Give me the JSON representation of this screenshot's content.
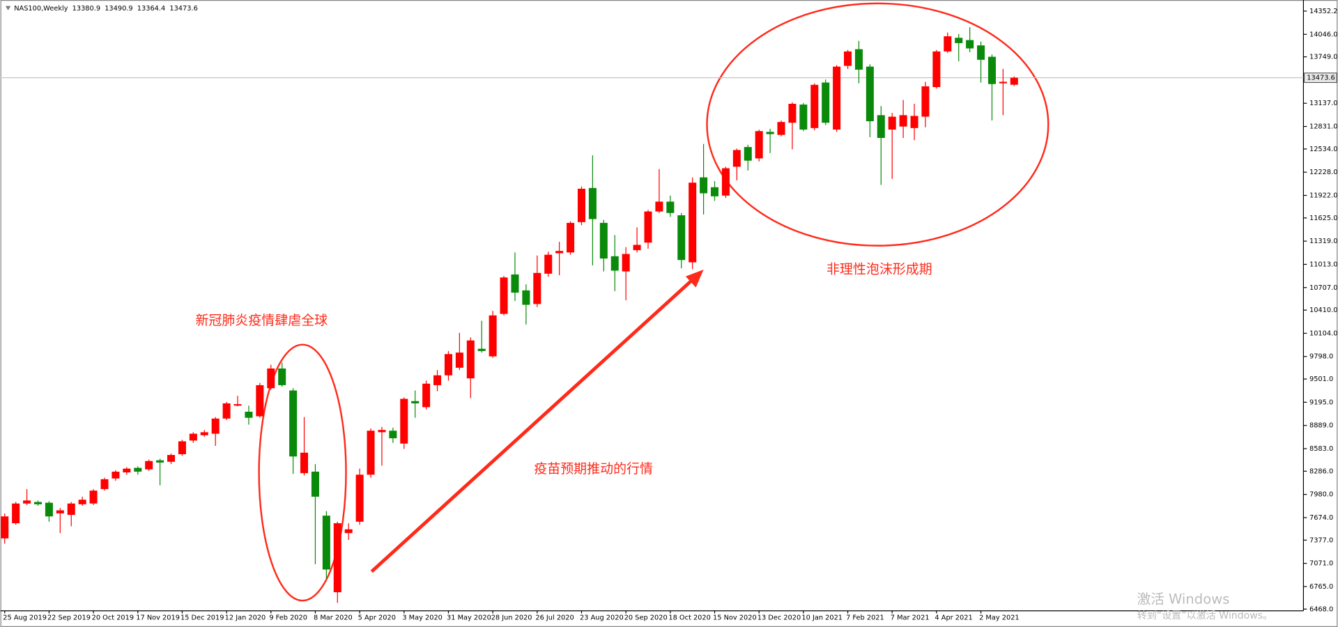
{
  "chart_data": {
    "type": "candlestick",
    "title": "NAS100,Weekly",
    "categories": [
      "25 Aug 2019",
      null,
      null,
      null,
      "22 Sep 2019",
      null,
      null,
      null,
      "20 Oct 2019",
      null,
      null,
      null,
      "17 Nov 2019",
      null,
      null,
      null,
      "15 Dec 2019",
      null,
      null,
      null,
      "12 Jan 2020",
      null,
      null,
      null,
      "9 Feb 2020",
      null,
      null,
      null,
      "8 Mar 2020",
      null,
      null,
      null,
      "5 Apr 2020",
      null,
      null,
      null,
      "3 May 2020",
      null,
      null,
      null,
      "31 May 2020",
      null,
      null,
      null,
      "28 Jun 2020",
      null,
      null,
      null,
      "26 Jul 2020",
      null,
      null,
      null,
      "23 Aug 2020",
      null,
      null,
      null,
      "20 Sep 2020",
      null,
      null,
      null,
      "18 Oct 2020",
      null,
      null,
      null,
      "15 Nov 2020",
      null,
      null,
      null,
      "13 Dec 2020",
      null,
      null,
      null,
      "10 Jan 2021",
      null,
      null,
      null,
      "7 Feb 2021",
      null,
      null,
      null,
      "7 Mar 2021",
      null,
      null,
      null,
      "4 Apr 2021",
      null,
      null,
      null,
      "2 May 2021",
      null,
      null,
      null
    ],
    "open": [
      7400,
      7600,
      7860,
      7880,
      7870,
      7730,
      7710,
      7850,
      7860,
      8050,
      8190,
      8270,
      8330,
      8310,
      8430,
      8410,
      8510,
      8690,
      8760,
      8780,
      8980,
      9150,
      9070,
      9010,
      9380,
      9640,
      9350,
      8260,
      8280,
      7700,
      6690,
      7470,
      7620,
      8240,
      8800,
      8820,
      8650,
      9210,
      9130,
      9420,
      9550,
      9650,
      9510,
      9900,
      9800,
      10360,
      10880,
      10670,
      10490,
      10890,
      11160,
      11170,
      11570,
      12020,
      11560,
      11120,
      10920,
      11200,
      11300,
      11710,
      11840,
      11660,
      11040,
      12160,
      12030,
      11920,
      12300,
      12560,
      12410,
      12760,
      12720,
      12880,
      13120,
      12810,
      13410,
      12790,
      13630,
      13850,
      13620,
      12980,
      12790,
      12830,
      12810,
      12960,
      13350,
      13820,
      14000,
      13970,
      13900,
      13750,
      13400,
      13380.9
    ],
    "high": [
      7730,
      7880,
      8050,
      7900,
      7890,
      7800,
      7880,
      7950,
      8050,
      8200,
      8300,
      8340,
      8350,
      8440,
      8450,
      8520,
      8700,
      8800,
      8830,
      9000,
      9200,
      9280,
      9150,
      9450,
      9690,
      9720,
      9380,
      9000,
      8380,
      7760,
      7620,
      7600,
      8320,
      8850,
      8870,
      8860,
      9260,
      9350,
      9480,
      9620,
      9870,
      10110,
      10050,
      10270,
      10400,
      10860,
      11170,
      10750,
      11130,
      11180,
      11310,
      11580,
      12040,
      12450,
      11600,
      11400,
      11240,
      11500,
      11730,
      12270,
      11920,
      11690,
      12160,
      12600,
      12110,
      12300,
      12540,
      12590,
      12790,
      12800,
      12910,
      13150,
      13140,
      13400,
      13450,
      13640,
      13840,
      13960,
      13650,
      13100,
      13010,
      13180,
      13130,
      13420,
      13840,
      14070,
      14050,
      14140,
      13950,
      13780,
      13590,
      13490.9
    ],
    "low": [
      7330,
      7580,
      7840,
      7830,
      7620,
      7470,
      7560,
      7830,
      7840,
      8030,
      8160,
      8240,
      8240,
      8290,
      8100,
      8380,
      8490,
      8660,
      8740,
      8620,
      8960,
      9140,
      8900,
      8990,
      9360,
      9400,
      8250,
      8230,
      7060,
      6870,
      6550,
      7380,
      7580,
      8200,
      8360,
      8660,
      8580,
      8990,
      9100,
      9340,
      9480,
      9620,
      9250,
      9850,
      9780,
      10340,
      10530,
      10220,
      10450,
      10850,
      10870,
      11140,
      11530,
      11000,
      10920,
      10660,
      10540,
      11170,
      11220,
      11690,
      11640,
      10960,
      10950,
      11670,
      11850,
      11890,
      12120,
      12250,
      12370,
      12480,
      12700,
      12530,
      12770,
      12780,
      12850,
      12760,
      13590,
      13400,
      12690,
      12060,
      12140,
      12680,
      12650,
      12820,
      13330,
      13800,
      13690,
      13810,
      13410,
      12910,
      12980,
      13364.4
    ],
    "close": [
      7690,
      7860,
      7900,
      7850,
      7690,
      7770,
      7860,
      7910,
      8030,
      8180,
      8280,
      8320,
      8280,
      8420,
      8400,
      8500,
      8680,
      8780,
      8800,
      8980,
      9180,
      9170,
      8990,
      9420,
      9640,
      9420,
      8480,
      8530,
      7950,
      6990,
      7600,
      7520,
      8240,
      8820,
      8830,
      8720,
      9240,
      9180,
      9440,
      9550,
      9830,
      9850,
      10010,
      9870,
      10340,
      10840,
      10640,
      10480,
      10900,
      11140,
      11190,
      11560,
      12010,
      11610,
      11090,
      10930,
      11150,
      11270,
      11710,
      11840,
      11690,
      11070,
      12090,
      11950,
      11910,
      12280,
      12520,
      12380,
      12770,
      12730,
      12890,
      13130,
      12790,
      13380,
      12880,
      13620,
      13820,
      13580,
      12900,
      12680,
      12960,
      12980,
      12970,
      13360,
      13820,
      14020,
      13930,
      13860,
      13710,
      13390,
      13420,
      13473.6
    ],
    "up_color": "#ff0000",
    "down_color": "#0a8a0a",
    "ylim": [
      6468.0,
      14352.2
    ],
    "yticks": [
      14352.2,
      {
        "value": 14046,
        "label": "14046.0"
      },
      {
        "value": 13749,
        "label": "13749.0"
      },
      {
        "value": 13137,
        "label": "13137.0"
      },
      {
        "value": 12831,
        "label": "12831.0"
      },
      {
        "value": 12534,
        "label": "12534.0"
      },
      {
        "value": 12228,
        "label": "12228.0"
      },
      {
        "value": 11922,
        "label": "11922.0"
      },
      {
        "value": 11625,
        "label": "11625.0"
      },
      {
        "value": 11319,
        "label": "11319.0"
      },
      {
        "value": 11013,
        "label": "11013.0"
      },
      {
        "value": 10707,
        "label": "10707.0"
      },
      {
        "value": 10410,
        "label": "10410.0"
      },
      {
        "value": 10104,
        "label": "10104.0"
      },
      {
        "value": 9798,
        "label": "9798.0"
      },
      {
        "value": 9501,
        "label": "9501.0"
      },
      {
        "value": 9195,
        "label": "9195.0"
      },
      {
        "value": 8889,
        "label": "8889.0"
      },
      {
        "value": 8583,
        "label": "8583.0"
      },
      {
        "value": 8286,
        "label": "8286.0"
      },
      {
        "value": 7980,
        "label": "7980.0"
      },
      {
        "value": 7674,
        "label": "7674.0"
      },
      {
        "value": 7377,
        "label": "7377.0"
      },
      {
        "value": 7071,
        "label": "7071.0"
      },
      {
        "value": 6765,
        "label": "6765.0"
      },
      {
        "value": 6468,
        "label": "6468.0"
      }
    ],
    "grid": false,
    "annotations": [
      "新冠肺炎疫情肆虐全球",
      "疫苗预期推动的行情",
      "非理性泡沫形成期"
    ]
  },
  "watermark": [
    "激活 Windows",
    "转到“设置”以激活 Windows。"
  ]
}
